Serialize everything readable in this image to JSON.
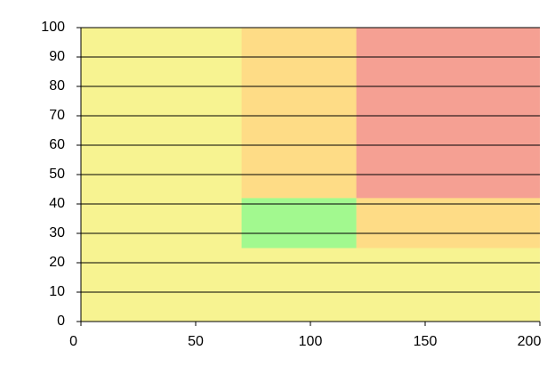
{
  "chart_data": {
    "type": "zones",
    "regions": [
      {
        "x": [
          0,
          200
        ],
        "y": [
          0,
          100
        ],
        "color": "#f7f391"
      },
      {
        "x": [
          70,
          120
        ],
        "y": [
          42,
          100
        ],
        "color": "#fedc86"
      },
      {
        "x": [
          120,
          200
        ],
        "y": [
          25,
          42
        ],
        "color": "#fedc86"
      },
      {
        "x": [
          120,
          200
        ],
        "y": [
          42,
          100
        ],
        "color": "#f5a093"
      },
      {
        "x": [
          70,
          120
        ],
        "y": [
          25,
          42
        ],
        "color": "#a2f98f"
      }
    ],
    "xlim": [
      0,
      200
    ],
    "ylim": [
      0,
      100
    ],
    "xticks": [
      0,
      50,
      100,
      150,
      200
    ],
    "yticks": [
      0,
      10,
      20,
      30,
      40,
      50,
      60,
      70,
      80,
      90,
      100
    ],
    "grid": true
  }
}
